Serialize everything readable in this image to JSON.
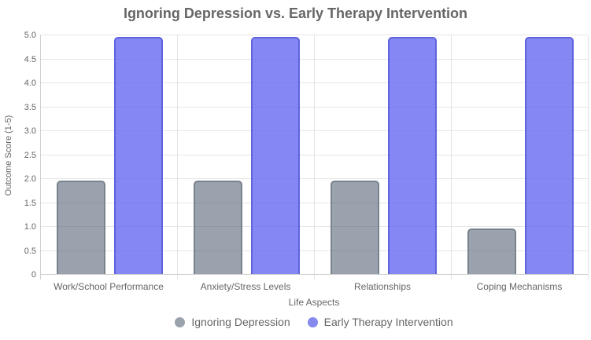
{
  "title": "Ignoring Depression vs. Early Therapy Intervention",
  "chart_data": {
    "type": "bar",
    "title": "Ignoring Depression vs. Early Therapy Intervention",
    "categories": [
      "Work/School Performance",
      "Anxiety/Stress Levels",
      "Relationships",
      "Coping Mechanisms"
    ],
    "series": [
      {
        "name": "Ignoring Depression",
        "values": [
          2,
          2,
          2,
          1
        ],
        "color": "#9aa3ad",
        "border_color": "#79838d",
        "fill_rgba": "rgba(71,85,105,0.55)"
      },
      {
        "name": "Early Therapy Intervention",
        "values": [
          5,
          5,
          5,
          5
        ],
        "color": "#8588ed",
        "border_color": "#5f63de",
        "fill_rgba": "rgba(99,102,241,0.78)"
      }
    ],
    "xlabel": "Life Aspects",
    "ylabel": "Outcome Score (1-5)",
    "ylim": [
      0,
      5
    ],
    "ytick_step": 0.5,
    "yticks": [
      "0",
      "0.5",
      "1.0",
      "1.5",
      "2.0",
      "2.5",
      "3.0",
      "3.5",
      "4.0",
      "4.5",
      "5.0"
    ],
    "grid": true,
    "legend_position": "bottom"
  },
  "colors": {
    "title_text": "#666666",
    "axis_text": "#666666",
    "gridline": "#e6e6e6",
    "axis_border": "#d0d0d0",
    "background": "#ffffff"
  }
}
